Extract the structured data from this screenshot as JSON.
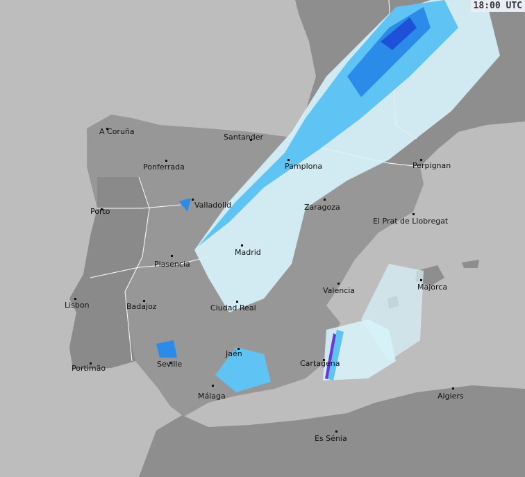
{
  "timestamp": "18:00 UTC",
  "colors": {
    "sea": "#bdbdbd",
    "land": "#8e8e8e",
    "iberia": "#979797",
    "rain_light": "#d8f4fc",
    "rain_mid": "#5fc4f4",
    "rain_heavy": "#2a8ce8",
    "rain_intense": "#1e50d8"
  },
  "cities": [
    {
      "name": "A Coruña"
    },
    {
      "name": "Santander"
    },
    {
      "name": "Ponferrada"
    },
    {
      "name": "Pamplona"
    },
    {
      "name": "Perpignan"
    },
    {
      "name": "Valladolid"
    },
    {
      "name": "Porto"
    },
    {
      "name": "Zaragoza"
    },
    {
      "name": "El Prat de Llobregat"
    },
    {
      "name": "Madrid"
    },
    {
      "name": "Plasencia"
    },
    {
      "name": "Valencia"
    },
    {
      "name": "Majorca"
    },
    {
      "name": "Lisbon"
    },
    {
      "name": "Badajoz"
    },
    {
      "name": "Ciudad Real"
    },
    {
      "name": "Jaén"
    },
    {
      "name": "Seville"
    },
    {
      "name": "Portimão"
    },
    {
      "name": "Cartagena"
    },
    {
      "name": "Málaga"
    },
    {
      "name": "Algiers"
    },
    {
      "name": "Es Sénia"
    }
  ]
}
